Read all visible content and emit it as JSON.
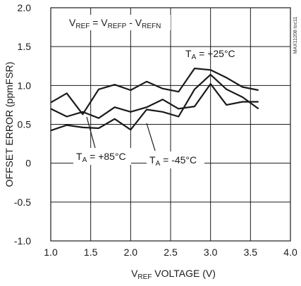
{
  "chart_data": {
    "type": "line",
    "annotation": {
      "v": "V",
      "v_sub": "REF",
      "eq": " = V",
      "p_sub": "REFP",
      "minus": " - V",
      "n_sub": "REFN"
    },
    "xlabel": {
      "v": "V",
      "sub": "REF",
      "rest": " VOLTAGE (V)"
    },
    "ylabel": "OFFSET ERROR (ppmFSR)",
    "side_label": "MAX11208 toc11",
    "xlim": [
      1.0,
      4.0
    ],
    "ylim": [
      -1.0,
      2.0
    ],
    "x_ticks": [
      "1.0",
      "1.5",
      "2.0",
      "2.5",
      "3.0",
      "3.5",
      "4.0"
    ],
    "y_ticks": [
      "2.0",
      "1.5",
      "1.0",
      "0.5",
      "0",
      "-0.5",
      "-1.0"
    ],
    "grid": true,
    "series": [
      {
        "label_t": "T",
        "label_sub": "A",
        "label_rest": " = +25°C",
        "x": [
          1.0,
          1.2,
          1.4,
          1.6,
          1.8,
          2.0,
          2.2,
          2.4,
          2.6,
          2.8,
          3.0,
          3.2,
          3.4,
          3.6
        ],
        "y": [
          0.78,
          0.9,
          0.63,
          0.95,
          1.01,
          0.94,
          1.05,
          0.96,
          0.92,
          1.22,
          1.2,
          1.1,
          0.98,
          0.94
        ]
      },
      {
        "label_t": "T",
        "label_sub": "A",
        "label_rest": " = +85°C",
        "x": [
          1.0,
          1.2,
          1.4,
          1.6,
          1.8,
          2.0,
          2.2,
          2.4,
          2.6,
          2.8,
          3.0,
          3.2,
          3.4,
          3.6
        ],
        "y": [
          0.7,
          0.6,
          0.66,
          0.58,
          0.72,
          0.66,
          0.72,
          0.82,
          0.7,
          0.73,
          1.02,
          0.75,
          0.79,
          0.79
        ]
      },
      {
        "label_t": "T",
        "label_sub": "A",
        "label_rest": " = -45°C",
        "x": [
          1.0,
          1.2,
          1.4,
          1.6,
          1.8,
          2.0,
          2.2,
          2.4,
          2.6,
          2.8,
          3.0,
          3.2,
          3.4,
          3.6
        ],
        "y": [
          0.42,
          0.49,
          0.46,
          0.45,
          0.57,
          0.43,
          0.69,
          0.66,
          0.6,
          0.95,
          1.14,
          0.95,
          0.85,
          0.7
        ]
      }
    ]
  }
}
